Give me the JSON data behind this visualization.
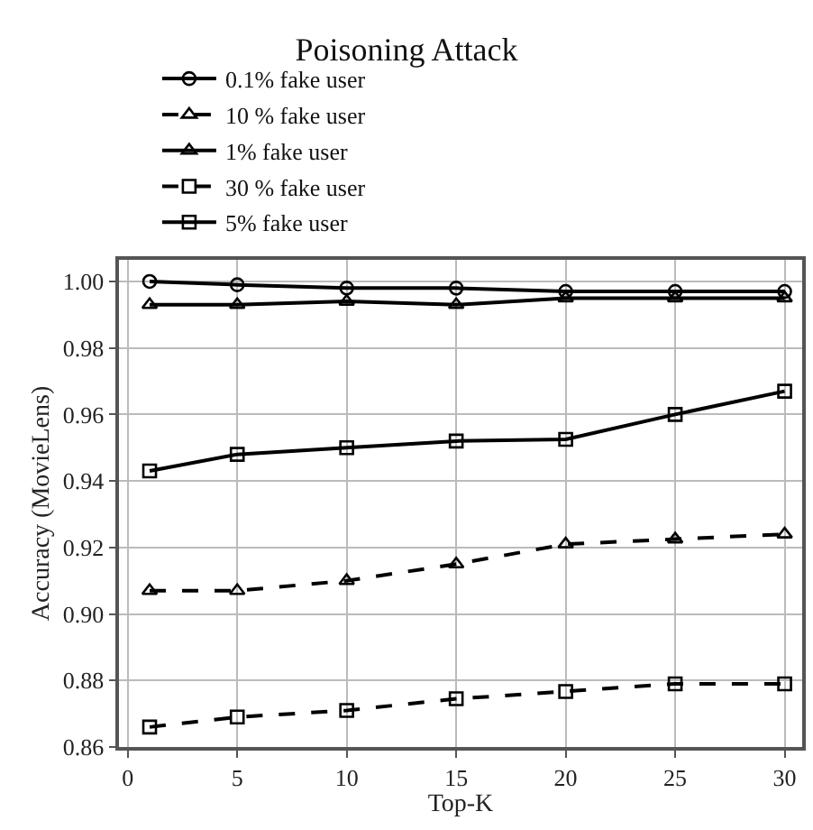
{
  "chart_data": {
    "type": "line",
    "title": "Poisoning Attack",
    "xlabel": "Top-K",
    "ylabel": "Accuracy (MovieLens)",
    "x": [
      1,
      5,
      10,
      15,
      20,
      25,
      30
    ],
    "series": [
      {
        "name": "0.1% fake user",
        "color": "#000000",
        "marker": "circle",
        "line_style": "solid",
        "values": [
          1.0,
          0.999,
          0.998,
          0.998,
          0.997,
          0.997,
          0.997
        ]
      },
      {
        "name": "1% fake user",
        "color": "#000000",
        "marker": "triangle",
        "line_style": "solid",
        "values": [
          0.993,
          0.993,
          0.994,
          0.993,
          0.995,
          0.995,
          0.995
        ]
      },
      {
        "name": "5% fake user",
        "color": "#000000",
        "marker": "square",
        "line_style": "solid",
        "values": [
          0.943,
          0.948,
          0.95,
          0.952,
          0.9525,
          0.96,
          0.967
        ]
      },
      {
        "name": "10 % fake user",
        "color": "#000000",
        "marker": "triangle",
        "line_style": "dashed",
        "values": [
          0.907,
          0.907,
          0.91,
          0.915,
          0.921,
          0.9225,
          0.924
        ]
      },
      {
        "name": "30 % fake user",
        "color": "#000000",
        "marker": "square",
        "line_style": "dashed",
        "values": [
          0.866,
          0.869,
          0.871,
          0.8745,
          0.8767,
          0.879,
          0.879
        ]
      }
    ],
    "xlim": [
      -0.4,
      30.8
    ],
    "xticks": [
      0,
      5,
      10,
      15,
      20,
      25,
      30
    ],
    "ylim": [
      0.86,
      1.0065
    ],
    "yticks": [
      {
        "value": 0.86,
        "label": "0.86"
      },
      {
        "value": 0.88,
        "label": "0.88"
      },
      {
        "value": 0.9,
        "label": "0.90"
      },
      {
        "value": 0.92,
        "label": "0.92"
      },
      {
        "value": 0.94,
        "label": "0.94"
      },
      {
        "value": 0.96,
        "label": "0.96"
      },
      {
        "value": 0.98,
        "label": "0.98"
      },
      {
        "value": 1.0,
        "label": "1.00"
      }
    ],
    "grid": true,
    "legend": "top"
  }
}
